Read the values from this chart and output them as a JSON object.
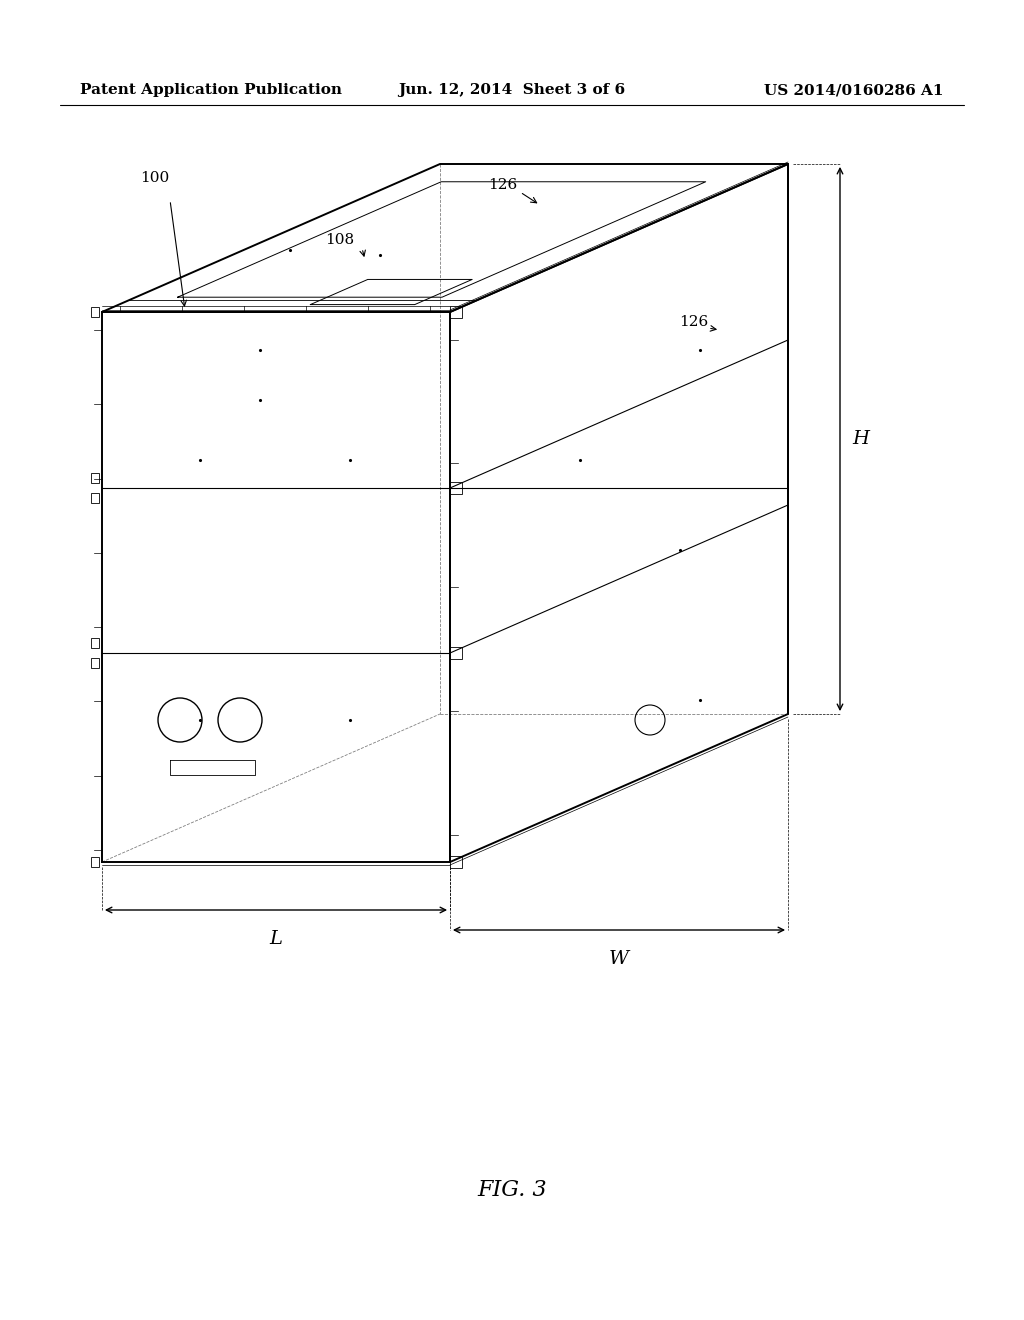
{
  "background_color": "#ffffff",
  "header_left": "Patent Application Publication",
  "header_center": "Jun. 12, 2014  Sheet 3 of 6",
  "header_right": "US 2014/0160286 A1",
  "header_fontsize": 11,
  "footer_label": "FIG. 3",
  "footer_fontsize": 16,
  "ref_100": "100",
  "ref_108": "108",
  "ref_126_top": "126",
  "ref_126_right": "126",
  "dim_H": "H",
  "dim_L": "L",
  "dim_W": "W"
}
